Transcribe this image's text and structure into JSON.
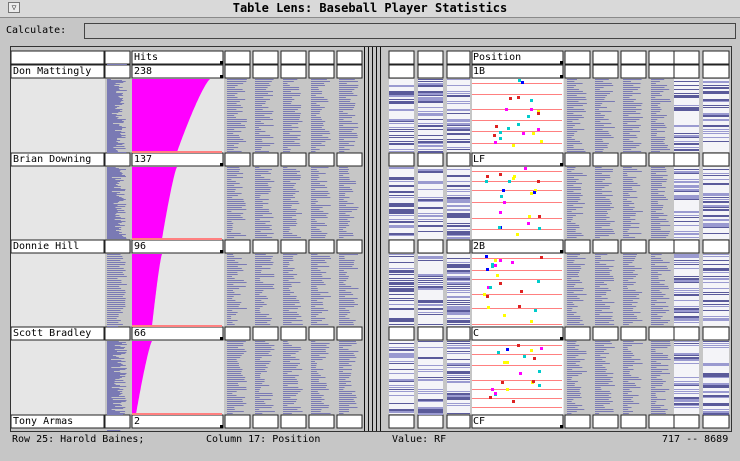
{
  "window": {
    "title": "Table Lens: Baseball Player Statistics",
    "menu_glyph": "▽"
  },
  "calculate": {
    "label": "Calculate:",
    "value": ""
  },
  "columns": {
    "hits": "Hits",
    "position": "Position"
  },
  "focus_rows": [
    {
      "name": "Don Mattingly",
      "hits": "238",
      "position": "1B"
    },
    {
      "name": "Brian Downing",
      "hits": "137",
      "position": "LF"
    },
    {
      "name": "Donnie Hill",
      "hits": "96",
      "position": "2B"
    },
    {
      "name": "Scott Bradley",
      "hits": "66",
      "position": "C"
    },
    {
      "name": "Tony Armas",
      "hits": "2",
      "position": "CF"
    }
  ],
  "status": {
    "row": "Row 25: Harold Baines;",
    "column": "Column 17: Position",
    "value": "Value: RF",
    "range": "717 -- 8689"
  },
  "colors": {
    "hits_bar": "#ff00ff",
    "mini_bar": "#7a7ab4",
    "focus_line": "#ff8080"
  }
}
